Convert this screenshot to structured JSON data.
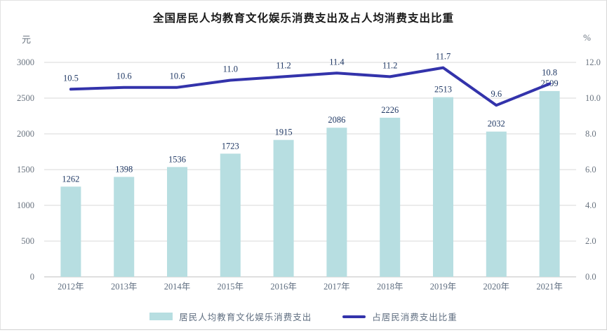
{
  "chart_data": {
    "type": "bar",
    "combo": "bar+line",
    "title": "全国居民人均教育文化娱乐消费支出及占人均消费支出比重",
    "categories": [
      "2012年",
      "2013年",
      "2014年",
      "2015年",
      "2016年",
      "2017年",
      "2018年",
      "2019年",
      "2020年",
      "2021年"
    ],
    "series": [
      {
        "name": "居民人均教育文化娱乐消费支出",
        "type": "bar",
        "axis": "left",
        "values": [
          1262,
          1398,
          1536,
          1723,
          1915,
          2086,
          2226,
          2513,
          2032,
          2599
        ],
        "labels": [
          "1262",
          "1398",
          "1536",
          "1723",
          "1915",
          "2086",
          "2226",
          "2513",
          "2032",
          "2599"
        ],
        "color": "#b7dee1"
      },
      {
        "name": "占居民消费支出比重",
        "type": "line",
        "axis": "right",
        "values": [
          10.5,
          10.6,
          10.6,
          11.0,
          11.2,
          11.4,
          11.2,
          11.7,
          9.6,
          10.8
        ],
        "labels": [
          "10.5",
          "10.6",
          "10.6",
          "11.0",
          "11.2",
          "11.4",
          "11.2",
          "11.7",
          "9.6",
          "10.8"
        ],
        "color": "#3333ab"
      }
    ],
    "left_axis": {
      "unit": "元",
      "min": 0,
      "max": 3000,
      "step": 500,
      "ticks": [
        "0",
        "500",
        "1000",
        "1500",
        "2000",
        "2500",
        "3000"
      ]
    },
    "right_axis": {
      "unit": "%",
      "min": 0,
      "max": 12,
      "step": 2,
      "ticks": [
        "0.0",
        "2.0",
        "4.0",
        "6.0",
        "8.0",
        "10.0",
        "12.0"
      ]
    },
    "grid": true,
    "legend_position": "bottom"
  },
  "colors": {
    "bar_fill": "#b7dee1",
    "line_stroke": "#3333ab",
    "data_label": "#1f3864",
    "tick_label": "#6a7480",
    "category_label": "#5f6e80",
    "gridline": "#d9d9d9",
    "axis_line": "#bfbfbf"
  }
}
